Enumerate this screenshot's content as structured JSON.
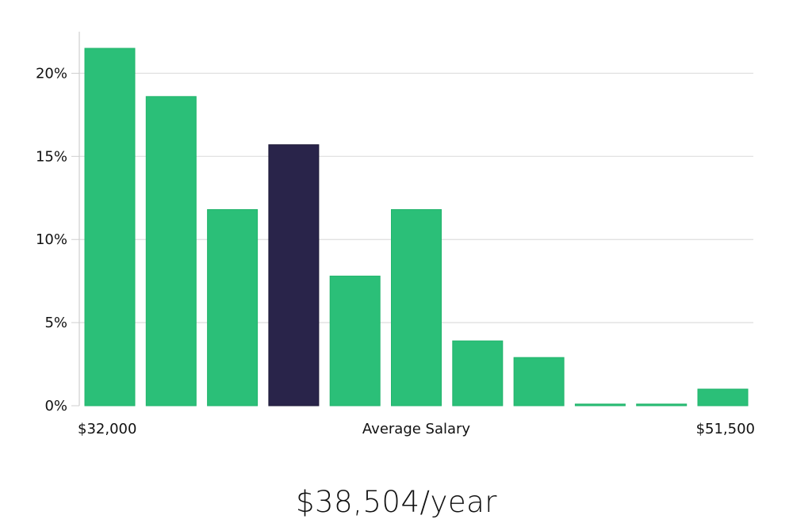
{
  "chart_data": {
    "type": "bar",
    "title": "",
    "xlabel": "Average Salary",
    "ylabel": "",
    "x_tick_labels": {
      "left": "$32,000",
      "right": "$51,500"
    },
    "y_tick_labels": [
      "0%",
      "5%",
      "10%",
      "15%",
      "20%"
    ],
    "ylim": [
      0,
      22.5
    ],
    "y_ticks": [
      0,
      5,
      10,
      15,
      20
    ],
    "grid": true,
    "bins": [
      {
        "value": 21.5,
        "highlight": false
      },
      {
        "value": 18.6,
        "highlight": false
      },
      {
        "value": 11.8,
        "highlight": false
      },
      {
        "value": 15.7,
        "highlight": true
      },
      {
        "value": 7.8,
        "highlight": false
      },
      {
        "value": 11.8,
        "highlight": false
      },
      {
        "value": 3.9,
        "highlight": false
      },
      {
        "value": 2.9,
        "highlight": false
      },
      {
        "value": 0.1,
        "highlight": false
      },
      {
        "value": 0.1,
        "highlight": false
      },
      {
        "value": 1.0,
        "highlight": false
      }
    ],
    "colors": {
      "bar": "#2bbf78",
      "highlight": "#29244a",
      "grid": "#dedede",
      "axis": "#cfcfcf"
    }
  },
  "summary": {
    "salary_text": "$38,504/year"
  }
}
